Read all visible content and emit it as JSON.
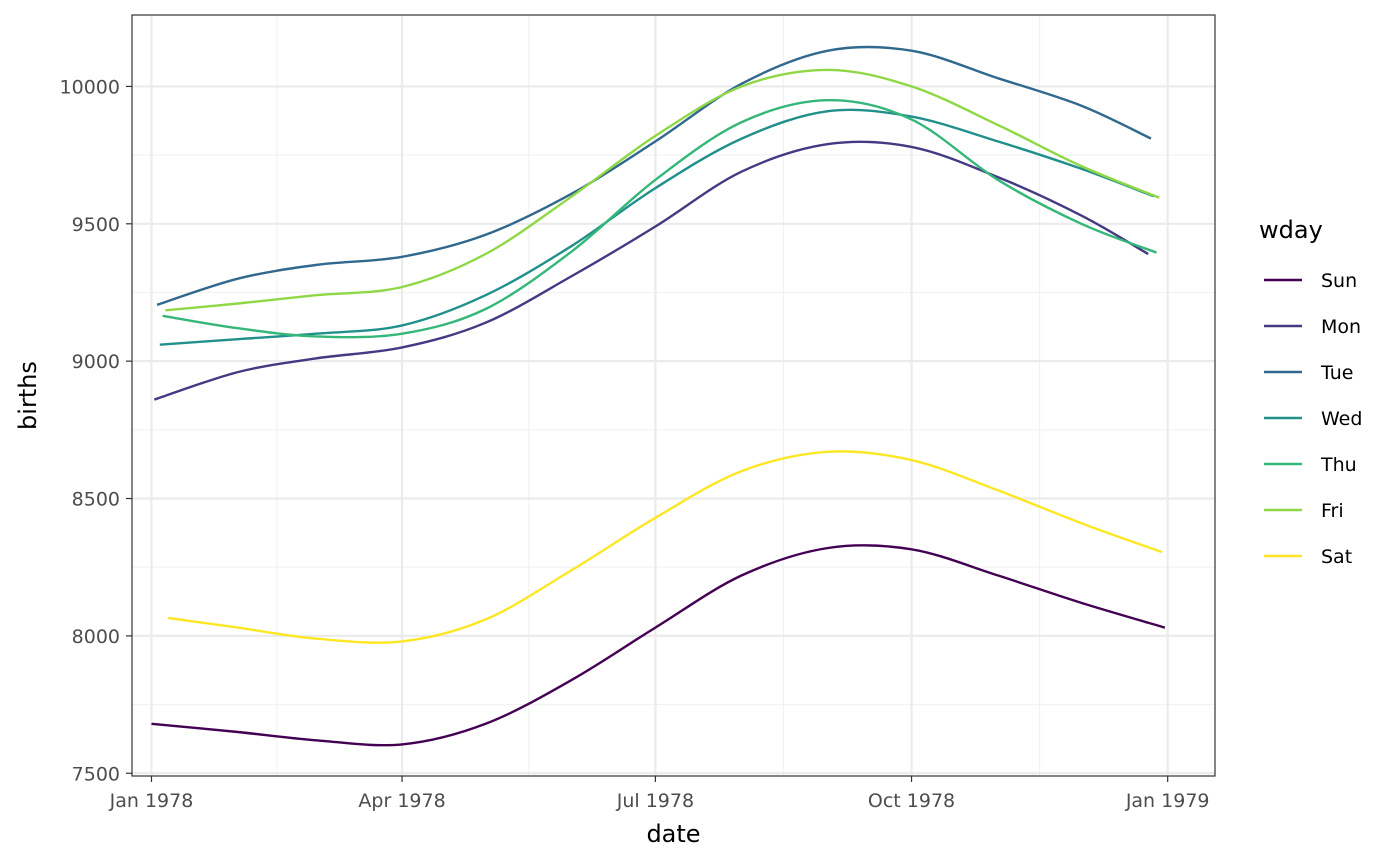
{
  "chart_data": {
    "type": "line",
    "title": "",
    "xlabel": "date",
    "ylabel": "births",
    "x_ticks": [
      {
        "date": "1978-01-01",
        "label": "Jan 1978"
      },
      {
        "date": "1978-04-01",
        "label": "Apr 1978"
      },
      {
        "date": "1978-07-01",
        "label": "Jul 1978"
      },
      {
        "date": "1978-10-01",
        "label": "Oct 1978"
      },
      {
        "date": "1979-01-01",
        "label": "Jan 1979"
      }
    ],
    "y_ticks": [
      7500,
      8000,
      8500,
      9000,
      9500,
      10000
    ],
    "xlim": [
      "1977-12-25",
      "1979-01-18"
    ],
    "ylim": [
      7490,
      10260
    ],
    "grid": true,
    "legend": {
      "title": "wday",
      "placement": "right"
    },
    "series": [
      {
        "name": "Sun",
        "color": "#440154",
        "points": [
          [
            "1978-01-01",
            7680
          ],
          [
            "1978-02-01",
            7650
          ],
          [
            "1978-03-01",
            7620
          ],
          [
            "1978-04-01",
            7605
          ],
          [
            "1978-05-01",
            7680
          ],
          [
            "1978-06-01",
            7840
          ],
          [
            "1978-07-01",
            8030
          ],
          [
            "1978-08-01",
            8220
          ],
          [
            "1978-09-01",
            8320
          ],
          [
            "1978-10-01",
            8315
          ],
          [
            "1978-11-01",
            8220
          ],
          [
            "1978-12-01",
            8120
          ],
          [
            "1978-12-31",
            8030
          ]
        ]
      },
      {
        "name": "Mon",
        "color": "#443A83",
        "points": [
          [
            "1978-01-02",
            8860
          ],
          [
            "1978-02-01",
            8960
          ],
          [
            "1978-03-01",
            9010
          ],
          [
            "1978-04-01",
            9050
          ],
          [
            "1978-05-01",
            9140
          ],
          [
            "1978-06-01",
            9310
          ],
          [
            "1978-07-01",
            9490
          ],
          [
            "1978-08-01",
            9690
          ],
          [
            "1978-09-01",
            9790
          ],
          [
            "1978-10-01",
            9780
          ],
          [
            "1978-11-01",
            9670
          ],
          [
            "1978-12-01",
            9530
          ],
          [
            "1978-12-25",
            9390
          ]
        ]
      },
      {
        "name": "Tue",
        "color": "#31688E",
        "points": [
          [
            "1978-01-03",
            9205
          ],
          [
            "1978-02-01",
            9300
          ],
          [
            "1978-03-01",
            9350
          ],
          [
            "1978-04-01",
            9380
          ],
          [
            "1978-05-01",
            9460
          ],
          [
            "1978-06-01",
            9610
          ],
          [
            "1978-07-01",
            9800
          ],
          [
            "1978-08-01",
            10010
          ],
          [
            "1978-09-01",
            10130
          ],
          [
            "1978-10-01",
            10130
          ],
          [
            "1978-11-01",
            10030
          ],
          [
            "1978-12-01",
            9930
          ],
          [
            "1978-12-26",
            9810
          ]
        ]
      },
      {
        "name": "Wed",
        "color": "#21908C",
        "points": [
          [
            "1978-01-04",
            9060
          ],
          [
            "1978-02-01",
            9080
          ],
          [
            "1978-03-01",
            9100
          ],
          [
            "1978-04-01",
            9130
          ],
          [
            "1978-05-01",
            9240
          ],
          [
            "1978-06-01",
            9420
          ],
          [
            "1978-07-01",
            9630
          ],
          [
            "1978-08-01",
            9810
          ],
          [
            "1978-09-01",
            9910
          ],
          [
            "1978-10-01",
            9890
          ],
          [
            "1978-11-01",
            9800
          ],
          [
            "1978-12-01",
            9700
          ],
          [
            "1978-12-27",
            9600
          ]
        ]
      },
      {
        "name": "Thu",
        "color": "#35B779",
        "points": [
          [
            "1978-01-05",
            9165
          ],
          [
            "1978-02-01",
            9120
          ],
          [
            "1978-03-01",
            9090
          ],
          [
            "1978-04-01",
            9100
          ],
          [
            "1978-05-01",
            9190
          ],
          [
            "1978-06-01",
            9400
          ],
          [
            "1978-07-01",
            9660
          ],
          [
            "1978-08-01",
            9870
          ],
          [
            "1978-09-01",
            9950
          ],
          [
            "1978-10-01",
            9880
          ],
          [
            "1978-11-01",
            9660
          ],
          [
            "1978-12-01",
            9500
          ],
          [
            "1978-12-28",
            9395
          ]
        ]
      },
      {
        "name": "Fri",
        "color": "#8FD744",
        "points": [
          [
            "1978-01-06",
            9185
          ],
          [
            "1978-02-01",
            9210
          ],
          [
            "1978-03-01",
            9240
          ],
          [
            "1978-04-01",
            9270
          ],
          [
            "1978-05-01",
            9390
          ],
          [
            "1978-06-01",
            9600
          ],
          [
            "1978-07-01",
            9820
          ],
          [
            "1978-08-01",
            10000
          ],
          [
            "1978-09-01",
            10060
          ],
          [
            "1978-10-01",
            10000
          ],
          [
            "1978-11-01",
            9860
          ],
          [
            "1978-12-01",
            9710
          ],
          [
            "1978-12-29",
            9595
          ]
        ]
      },
      {
        "name": "Sat",
        "color": "#FDE725",
        "points": [
          [
            "1978-01-07",
            8065
          ],
          [
            "1978-02-01",
            8030
          ],
          [
            "1978-03-01",
            7990
          ],
          [
            "1978-04-01",
            7980
          ],
          [
            "1978-05-01",
            8060
          ],
          [
            "1978-06-01",
            8240
          ],
          [
            "1978-07-01",
            8430
          ],
          [
            "1978-08-01",
            8600
          ],
          [
            "1978-09-01",
            8670
          ],
          [
            "1978-10-01",
            8640
          ],
          [
            "1978-11-01",
            8530
          ],
          [
            "1978-12-01",
            8410
          ],
          [
            "1978-12-30",
            8305
          ]
        ]
      }
    ]
  }
}
